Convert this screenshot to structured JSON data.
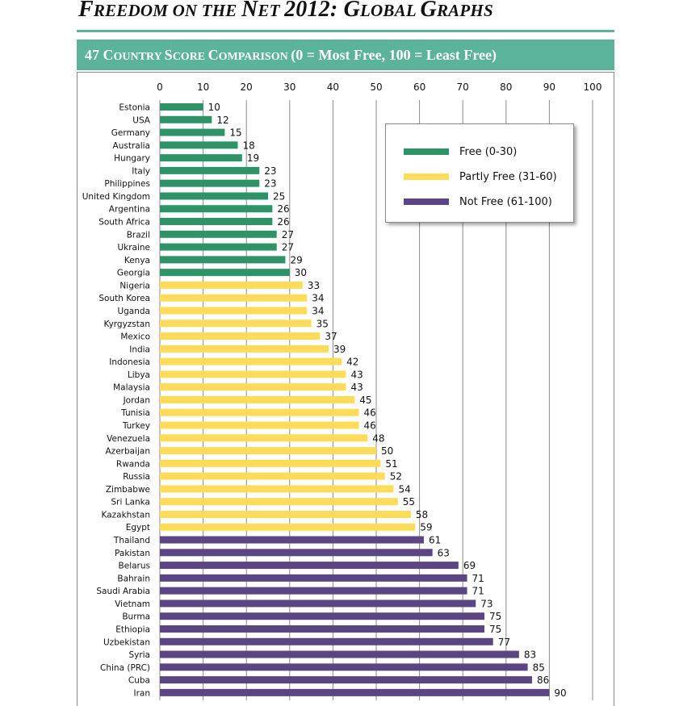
{
  "page_title": "Freedom on the Net 2012: Global Graphs",
  "banner": "47 Country Score Comparison (0 = Most Free, 100 = Least Free)",
  "colors": {
    "free": "#2e9468",
    "partly_free": "#fedc5a",
    "not_free": "#5b4683",
    "accent": "#5bb39a"
  },
  "legend": [
    {
      "key": "free",
      "label": "Free (0-30)"
    },
    {
      "key": "partly_free",
      "label": "Partly Free (31-60)"
    },
    {
      "key": "not_free",
      "label": "Not Free (61-100)"
    }
  ],
  "chart_data": {
    "type": "bar",
    "orientation": "horizontal",
    "title": "47 Country Score Comparison (0 = Most Free, 100 = Least Free)",
    "xlim": [
      0,
      100
    ],
    "xticks": [
      0,
      10,
      20,
      30,
      40,
      50,
      60,
      70,
      80,
      90,
      100
    ],
    "xaxis_position": "top",
    "grid": true,
    "legend_position": "top-right",
    "categories": [
      "Estonia",
      "USA",
      "Germany",
      "Australia",
      "Hungary",
      "Italy",
      "Philippines",
      "United Kingdom",
      "Argentina",
      "South Africa",
      "Brazil",
      "Ukraine",
      "Kenya",
      "Georgia",
      "Nigeria",
      "South Korea",
      "Uganda",
      "Kyrgyzstan",
      "Mexico",
      "India",
      "Indonesia",
      "Libya",
      "Malaysia",
      "Jordan",
      "Tunisia",
      "Turkey",
      "Venezuela",
      "Azerbaijan",
      "Rwanda",
      "Russia",
      "Zimbabwe",
      "Sri Lanka",
      "Kazakhstan",
      "Egypt",
      "Thailand",
      "Pakistan",
      "Belarus",
      "Bahrain",
      "Saudi Arabia",
      "Vietnam",
      "Burma",
      "Ethiopia",
      "Uzbekistan",
      "Syria",
      "China (PRC)",
      "Cuba",
      "Iran"
    ],
    "values": [
      10,
      12,
      15,
      18,
      19,
      23,
      23,
      25,
      26,
      26,
      27,
      27,
      29,
      30,
      33,
      34,
      34,
      35,
      37,
      39,
      42,
      43,
      43,
      45,
      46,
      46,
      48,
      50,
      51,
      52,
      54,
      55,
      58,
      59,
      61,
      63,
      69,
      71,
      71,
      73,
      75,
      75,
      77,
      83,
      85,
      86,
      90
    ],
    "status": [
      "free",
      "free",
      "free",
      "free",
      "free",
      "free",
      "free",
      "free",
      "free",
      "free",
      "free",
      "free",
      "free",
      "free",
      "partly_free",
      "partly_free",
      "partly_free",
      "partly_free",
      "partly_free",
      "partly_free",
      "partly_free",
      "partly_free",
      "partly_free",
      "partly_free",
      "partly_free",
      "partly_free",
      "partly_free",
      "partly_free",
      "partly_free",
      "partly_free",
      "partly_free",
      "partly_free",
      "partly_free",
      "partly_free",
      "not_free",
      "not_free",
      "not_free",
      "not_free",
      "not_free",
      "not_free",
      "not_free",
      "not_free",
      "not_free",
      "not_free",
      "not_free",
      "not_free",
      "not_free"
    ]
  }
}
